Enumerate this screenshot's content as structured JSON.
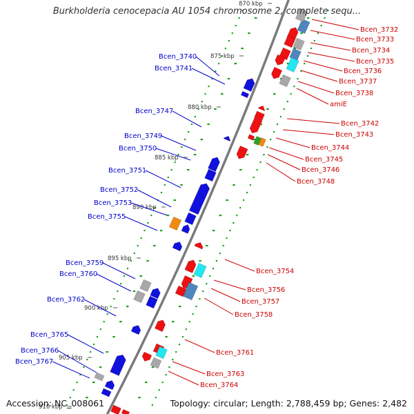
{
  "title": "Burkholderia cenocepacia AU 1054 chromosome 2, complete sequ...",
  "footer": {
    "accession": "Accession: NC_008061",
    "summary": "Topology: circular; Length: 2,788,459 bp; Genes: 2,482"
  },
  "ticks": [
    "870 kbp",
    "875 kbp",
    "880 kbp",
    "885 kbp",
    "890 kbp",
    "895 kbp",
    "900 kbp",
    "905 kbp",
    "910 kbp"
  ],
  "left_labels": [
    "Bcen_3740",
    "Bcen_3741",
    "Bcen_3747",
    "Bcen_3749",
    "Bcen_3750",
    "Bcen_3751",
    "Bcen_3752",
    "Bcen_3753",
    "Bcen_3755",
    "Bcen_3759",
    "Bcen_3760",
    "Bcen_3762",
    "Bcen_3765",
    "Bcen_3766",
    "Bcen_3767"
  ],
  "right_labels": [
    "Bcen_3732",
    "Bcen_3733",
    "Bcen_3734",
    "Bcen_3735",
    "Bcen_3736",
    "Bcen_3737",
    "Bcen_3738",
    "amiE",
    "Bcen_3742",
    "Bcen_3743",
    "Bcen_3744",
    "Bcen_3745",
    "Bcen_3746",
    "Bcen_3748",
    "Bcen_3754",
    "Bcen_3756",
    "Bcen_3757",
    "Bcen_3758",
    "Bcen_3761",
    "Bcen_3763",
    "Bcen_3764"
  ],
  "colors": {
    "backbone": "#7a7a7a",
    "reverse_strand": "#1111dd",
    "forward_strand": "#ee1111",
    "cyan_feature": "#22e6f0",
    "steelblue_feature": "#4f86be",
    "gray_feature": "#a8a8a8",
    "orange_feature": "#f08a10",
    "green_feature": "#2aa02a",
    "dots": "#1e9e1e",
    "left_label_text": "#0000cc",
    "right_label_text": "#cc0000"
  }
}
